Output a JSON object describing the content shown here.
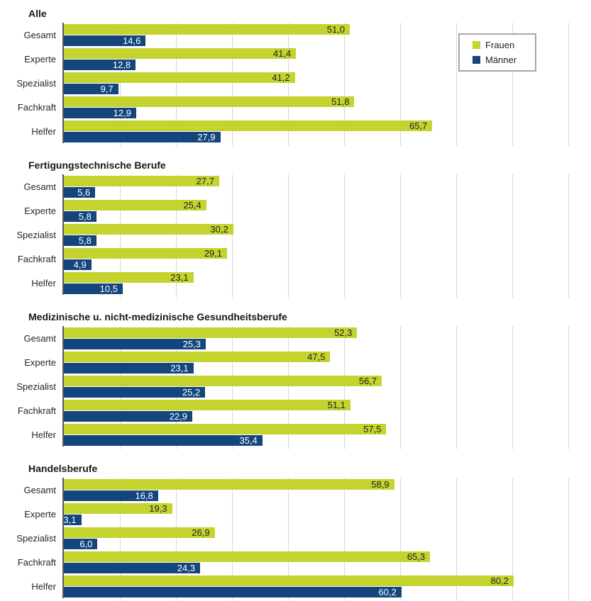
{
  "page": {
    "background": "#ffffff"
  },
  "legend": {
    "position": "top-right",
    "items": [
      {
        "label": "Frauen",
        "color": "#c4d32e"
      },
      {
        "label": "Männer",
        "color": "#15457d"
      }
    ]
  },
  "chart_data": {
    "type": "bar",
    "orientation": "horizontal",
    "xlim": [
      0,
      94
    ],
    "gridlines": [
      10,
      20,
      30,
      40,
      50,
      60,
      70,
      80,
      90
    ],
    "grid_color": "#d9d9d9",
    "axis_color": "#595959",
    "value_decimal_separator": ",",
    "categories": [
      "Gesamt",
      "Experte",
      "Spezialist",
      "Fachkraft",
      "Helfer"
    ],
    "colors": {
      "Frauen": "#c4d32e",
      "Männer": "#15457d"
    },
    "sections": [
      {
        "title": "Alle",
        "series": [
          {
            "name": "Frauen",
            "values": [
              51.0,
              41.4,
              41.2,
              51.8,
              65.7
            ]
          },
          {
            "name": "Männer",
            "values": [
              14.6,
              12.8,
              9.7,
              12.9,
              27.9
            ]
          }
        ]
      },
      {
        "title": "Fertigungstechnische Berufe",
        "series": [
          {
            "name": "Frauen",
            "values": [
              27.7,
              25.4,
              30.2,
              29.1,
              23.1
            ]
          },
          {
            "name": "Männer",
            "values": [
              5.6,
              5.8,
              5.8,
              4.9,
              10.5
            ]
          }
        ]
      },
      {
        "title": "Medizinische u. nicht-medizinische Gesundheitsberufe",
        "series": [
          {
            "name": "Frauen",
            "values": [
              52.3,
              47.5,
              56.7,
              51.1,
              57.5
            ]
          },
          {
            "name": "Männer",
            "values": [
              25.3,
              23.1,
              25.2,
              22.9,
              35.4
            ]
          }
        ]
      },
      {
        "title": "Handelsberufe",
        "series": [
          {
            "name": "Frauen",
            "values": [
              58.9,
              19.3,
              26.9,
              65.3,
              80.2
            ]
          },
          {
            "name": "Männer",
            "values": [
              16.8,
              3.1,
              6.0,
              24.3,
              60.2
            ]
          }
        ]
      }
    ]
  }
}
